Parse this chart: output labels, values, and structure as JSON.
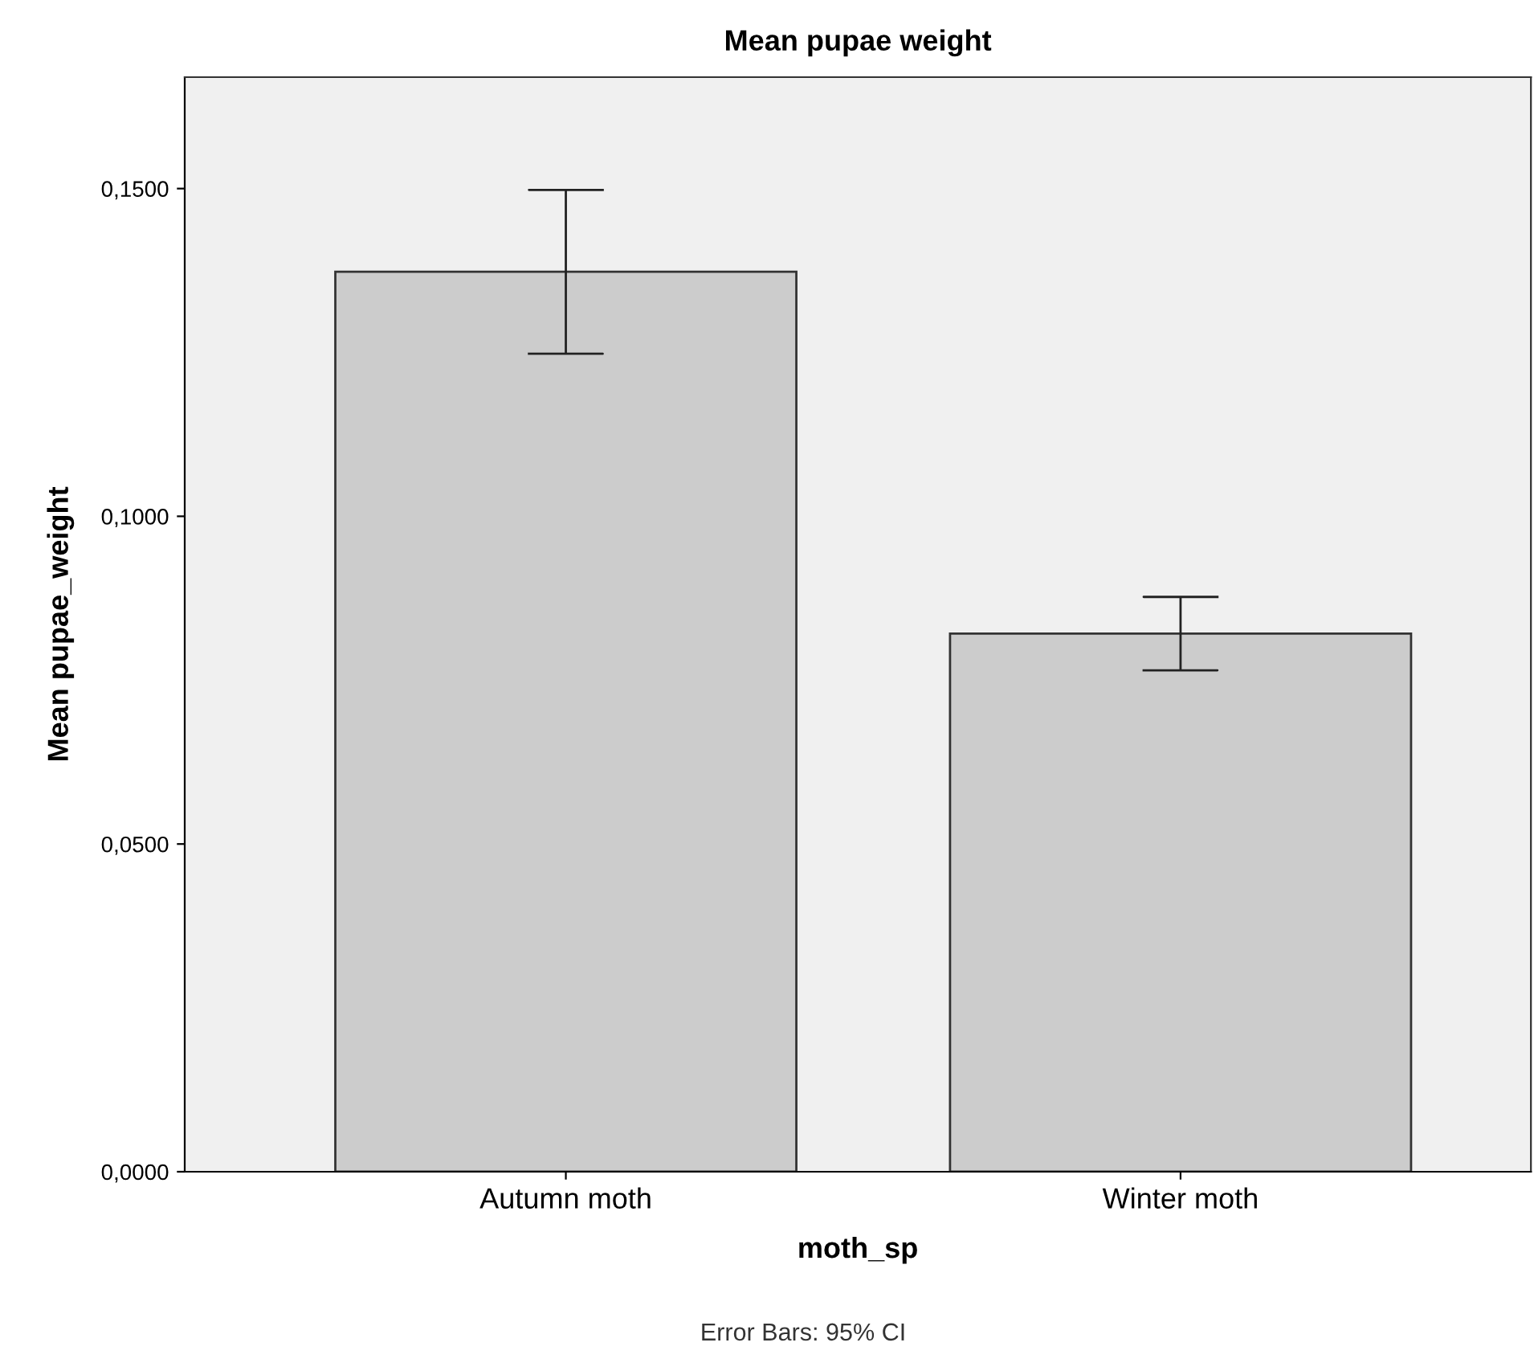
{
  "chart_data": {
    "type": "bar",
    "title": "Mean pupae weight",
    "xlabel": "moth_sp",
    "ylabel": "Mean pupae_weight",
    "categories": [
      "Autumn moth",
      "Winter moth"
    ],
    "values": [
      0.1373,
      0.0821
    ],
    "errors": [
      [
        0.1248,
        0.1498
      ],
      [
        0.0765,
        0.0877
      ]
    ],
    "color": "#cccccc",
    "ylim": [
      0,
      0.167
    ],
    "yticks": [
      {
        "value": 0,
        "label": "0,0000"
      },
      {
        "value": 0.05,
        "label": "0,0500"
      },
      {
        "value": 0.1,
        "label": "0,1000"
      },
      {
        "value": 0.15,
        "label": "0,1500"
      }
    ],
    "grid": false,
    "legend": false,
    "annotations": [
      "Error Bars: 95% CI"
    ]
  }
}
